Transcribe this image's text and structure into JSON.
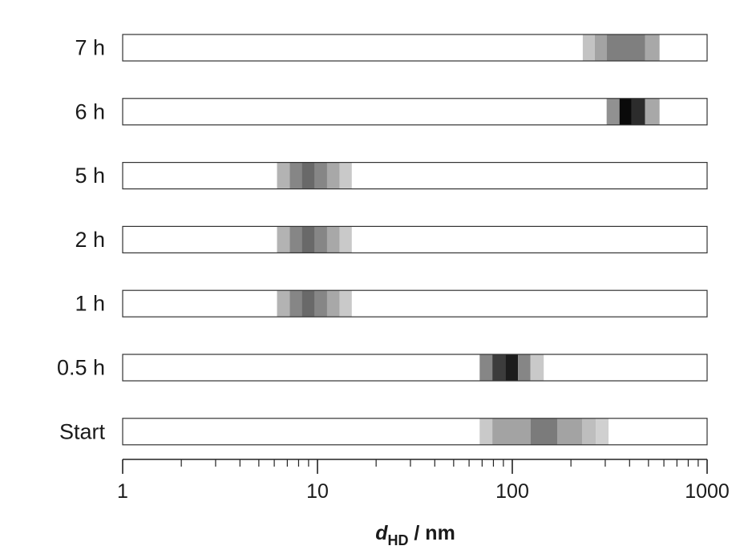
{
  "chart_data": {
    "type": "heatmap",
    "title": "",
    "xscale": "log",
    "xlim": [
      1,
      1000
    ],
    "xticks": [
      "1",
      "10",
      "100",
      "1000"
    ],
    "xlabel": {
      "main": "d",
      "sub": "HD",
      "unit": " / nm"
    },
    "rows": [
      {
        "label": "7 h",
        "bins": [
          {
            "from": 230,
            "to": 265,
            "level": 0.18
          },
          {
            "from": 265,
            "to": 305,
            "level": 0.32
          },
          {
            "from": 305,
            "to": 480,
            "level": 0.48
          },
          {
            "from": 480,
            "to": 570,
            "level": 0.3
          }
        ]
      },
      {
        "label": "6 h",
        "bins": [
          {
            "from": 305,
            "to": 355,
            "level": 0.4
          },
          {
            "from": 355,
            "to": 410,
            "level": 1.0
          },
          {
            "from": 410,
            "to": 480,
            "level": 0.85
          },
          {
            "from": 480,
            "to": 570,
            "level": 0.3
          }
        ]
      },
      {
        "label": "5 h",
        "bins": [
          {
            "from": 6.2,
            "to": 7.2,
            "level": 0.25
          },
          {
            "from": 7.2,
            "to": 8.3,
            "level": 0.45
          },
          {
            "from": 8.3,
            "to": 9.7,
            "level": 0.58
          },
          {
            "from": 9.7,
            "to": 11.2,
            "level": 0.45
          },
          {
            "from": 11.2,
            "to": 13.0,
            "level": 0.3
          },
          {
            "from": 13.0,
            "to": 15.0,
            "level": 0.15
          }
        ]
      },
      {
        "label": "2 h",
        "bins": [
          {
            "from": 6.2,
            "to": 7.2,
            "level": 0.25
          },
          {
            "from": 7.2,
            "to": 8.3,
            "level": 0.45
          },
          {
            "from": 8.3,
            "to": 9.7,
            "level": 0.58
          },
          {
            "from": 9.7,
            "to": 11.2,
            "level": 0.45
          },
          {
            "from": 11.2,
            "to": 13.0,
            "level": 0.3
          },
          {
            "from": 13.0,
            "to": 15.0,
            "level": 0.15
          }
        ]
      },
      {
        "label": "1 h",
        "bins": [
          {
            "from": 6.2,
            "to": 7.2,
            "level": 0.25
          },
          {
            "from": 7.2,
            "to": 8.3,
            "level": 0.45
          },
          {
            "from": 8.3,
            "to": 9.7,
            "level": 0.58
          },
          {
            "from": 9.7,
            "to": 11.2,
            "level": 0.45
          },
          {
            "from": 11.2,
            "to": 13.0,
            "level": 0.3
          },
          {
            "from": 13.0,
            "to": 15.0,
            "level": 0.15
          }
        ]
      },
      {
        "label": "0.5 h",
        "bins": [
          {
            "from": 68,
            "to": 79,
            "level": 0.45
          },
          {
            "from": 79,
            "to": 92,
            "level": 0.78
          },
          {
            "from": 92,
            "to": 107,
            "level": 0.92
          },
          {
            "from": 107,
            "to": 124,
            "level": 0.45
          },
          {
            "from": 124,
            "to": 145,
            "level": 0.15
          }
        ]
      },
      {
        "label": "Start",
        "bins": [
          {
            "from": 68,
            "to": 79,
            "level": 0.15
          },
          {
            "from": 79,
            "to": 124,
            "level": 0.32
          },
          {
            "from": 124,
            "to": 170,
            "level": 0.5
          },
          {
            "from": 170,
            "to": 228,
            "level": 0.32
          },
          {
            "from": 228,
            "to": 268,
            "level": 0.2
          },
          {
            "from": 268,
            "to": 312,
            "level": 0.12
          }
        ]
      }
    ]
  }
}
